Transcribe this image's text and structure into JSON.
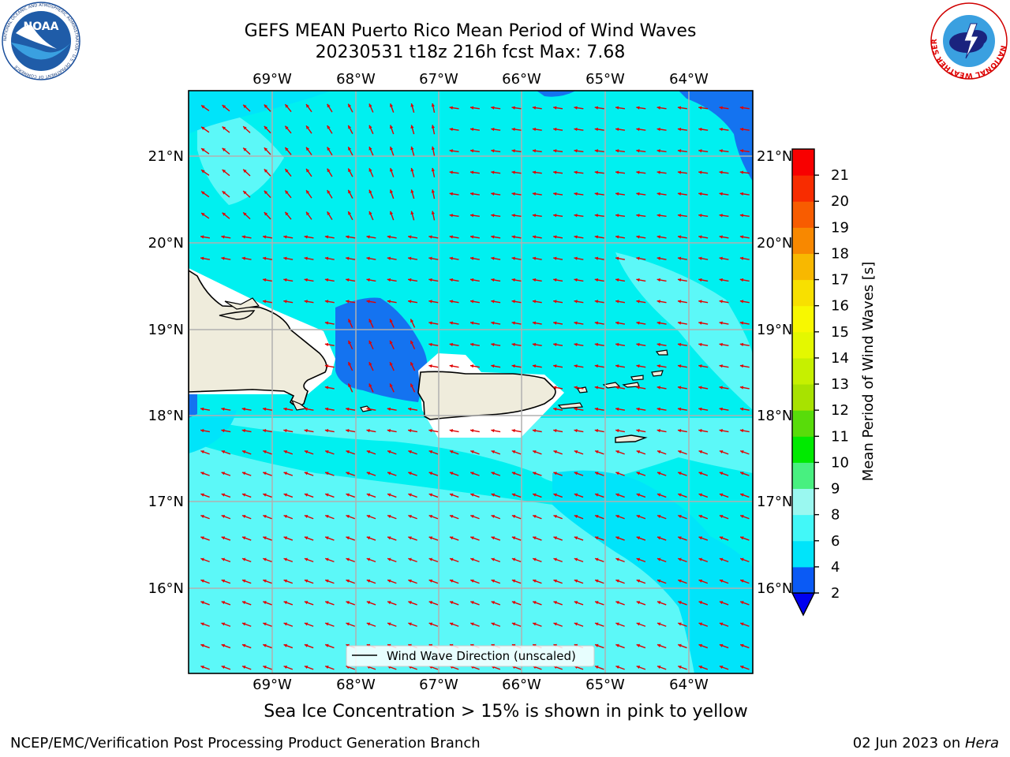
{
  "header": {
    "title_line1": "GEFS MEAN Puerto Rico Mean Period of Wind Waves",
    "title_line2": "20230531 t18z 216h fcst   Max: 7.68"
  },
  "logos": {
    "left": "NOAA",
    "left_ring_text": "NATIONAL OCEANIC AND ATMOSPHERIC ADMINISTRATION · U.S. DEPARTMENT OF COMMERCE",
    "right_ring_text": "NATIONAL WEATHER SERVICE"
  },
  "map": {
    "lon_labels": [
      "69°W",
      "68°W",
      "67°W",
      "66°W",
      "65°W",
      "64°W"
    ],
    "lat_labels": [
      "21°N",
      "20°N",
      "19°N",
      "18°N",
      "17°N",
      "16°N"
    ],
    "extent": {
      "lon": [
        -70.0,
        -63.25
      ],
      "lat": [
        15.05,
        21.75
      ]
    },
    "legend_label": "Wind Wave Direction (unscaled)",
    "arrow_color": "#e00000",
    "land_color": "#efecdc",
    "regions": [
      "Hispaniola",
      "Puerto Rico",
      "Virgin Islands",
      "St. Croix",
      "Mona Island"
    ]
  },
  "colorbar": {
    "label": "Mean Period of Wind Waves [s]",
    "ticks": [
      "2",
      "4",
      "6",
      "8",
      "9",
      "10",
      "11",
      "12",
      "13",
      "14",
      "15",
      "16",
      "17",
      "18",
      "19",
      "20",
      "21"
    ],
    "colors": [
      "#0a5af5",
      "#00e4fa",
      "#42f8f8",
      "#9af8f0",
      "#48f080",
      "#00ea00",
      "#58dc0a",
      "#a8e200",
      "#c6f000",
      "#e4f800",
      "#f8f800",
      "#f8e000",
      "#f8b800",
      "#f88800",
      "#f85c00",
      "#f82c00",
      "#f80000"
    ],
    "extend_min_color": "#0000f0"
  },
  "subtitle": "Sea Ice Concentration > 15% is shown in pink to yellow",
  "footer": {
    "left": "NCEP/EMC/Verification Post Processing Product Generation Branch",
    "date": "02 Jun 2023 on ",
    "host": "Hera"
  }
}
